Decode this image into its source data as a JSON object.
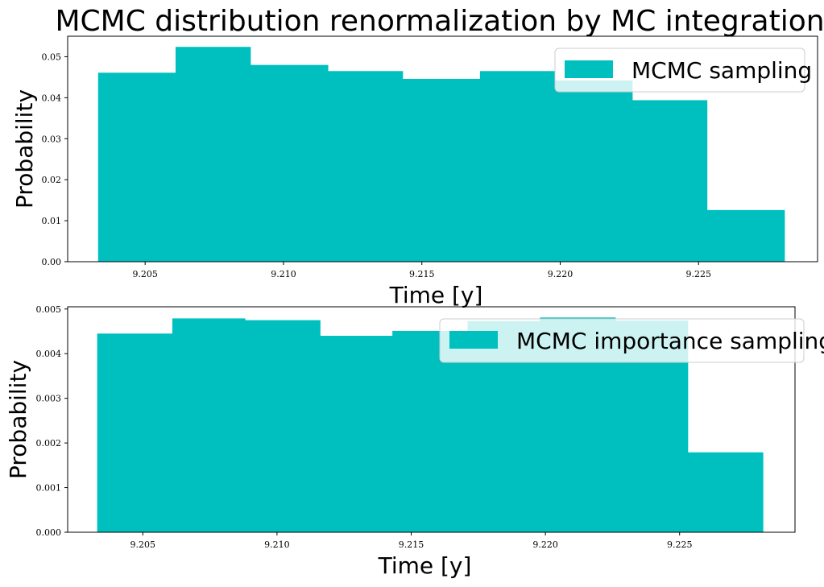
{
  "figure": {
    "title": "MCMC distribution renormalization by MC integration",
    "bar_color": "#00bfbf"
  },
  "chart_data": [
    {
      "type": "bar",
      "title": "",
      "xlabel": "Time [y]",
      "ylabel": "Probability",
      "legend": "MCMC sampling",
      "legend_position": "top-right",
      "grid": false,
      "xlim": [
        9.2022,
        9.2293
      ],
      "ylim": [
        0,
        0.055
      ],
      "bin_edges": [
        9.2033,
        9.2061,
        9.2088,
        9.2116,
        9.2143,
        9.2171,
        9.2198,
        9.2226,
        9.2253,
        9.2281
      ],
      "values": [
        0.0461,
        0.0524,
        0.048,
        0.0465,
        0.0446,
        0.0465,
        0.0442,
        0.0394,
        0.0126
      ],
      "xticks": [
        "9.205",
        "9.210",
        "9.215",
        "9.220",
        "9.225"
      ],
      "xtick_values": [
        9.205,
        9.21,
        9.215,
        9.22,
        9.225
      ],
      "yticks": [
        "0.00",
        "0.01",
        "0.02",
        "0.03",
        "0.04",
        "0.05"
      ],
      "ytick_values": [
        0,
        0.01,
        0.02,
        0.03,
        0.04,
        0.05
      ]
    },
    {
      "type": "bar",
      "title": "",
      "xlabel": "Time [y]",
      "ylabel": "Probability",
      "legend": "MCMC importance sampling",
      "legend_position": "top-right",
      "grid": false,
      "xlim": [
        9.2022,
        9.2293
      ],
      "ylim": [
        0,
        0.00505
      ],
      "bin_edges": [
        9.2033,
        9.2061,
        9.2088,
        9.2116,
        9.2143,
        9.2171,
        9.2198,
        9.2226,
        9.2253,
        9.2281
      ],
      "values": [
        0.00445,
        0.00479,
        0.00475,
        0.0044,
        0.00451,
        0.00473,
        0.00481,
        0.00474,
        0.00179
      ],
      "xticks": [
        "9.205",
        "9.210",
        "9.215",
        "9.220",
        "9.225"
      ],
      "xtick_values": [
        9.205,
        9.21,
        9.215,
        9.22,
        9.225
      ],
      "yticks": [
        "0.000",
        "0.001",
        "0.002",
        "0.003",
        "0.004",
        "0.005"
      ],
      "ytick_values": [
        0,
        0.001,
        0.002,
        0.003,
        0.004,
        0.005
      ]
    }
  ]
}
